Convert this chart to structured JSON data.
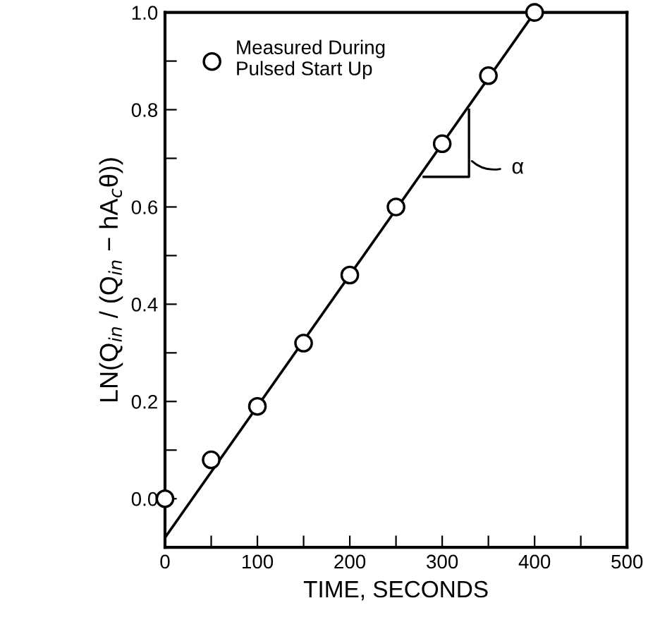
{
  "chart_data": {
    "type": "scatter",
    "xlabel": "TIME, SECONDS",
    "ylabel": "LN(Q$_{in}$ / (Q$_{in}$ − hA$_{c}$θ))",
    "xlim": [
      0,
      500
    ],
    "ylim": [
      -0.1,
      1.0
    ],
    "xticks": [
      0,
      {
        "value": 50,
        "label": null
      },
      100,
      {
        "value": 150,
        "label": null
      },
      200,
      {
        "value": 250,
        "label": null
      },
      300,
      {
        "value": 350,
        "label": null
      },
      400,
      {
        "value": 450,
        "label": null
      },
      500
    ],
    "yticks": [
      {
        "value": 0,
        "label": "0.0"
      },
      {
        "value": 0.1,
        "label": null
      },
      {
        "value": 0.2,
        "label": "0.2"
      },
      {
        "value": 0.3,
        "label": null
      },
      {
        "value": 0.4,
        "label": "0.4"
      },
      {
        "value": 0.5,
        "label": null
      },
      {
        "value": 0.6,
        "label": "0.6"
      },
      {
        "value": 0.7,
        "label": null
      },
      {
        "value": 0.8,
        "label": "0.8"
      },
      {
        "value": 0.9,
        "label": null
      },
      {
        "value": 1.0,
        "label": "1.0"
      }
    ],
    "grid": false,
    "legend": "top left",
    "series": [
      {
        "name": "Measured During\nPulsed Start Up",
        "marker": "circle",
        "color": "#000000",
        "x": [
          0,
          50,
          100,
          150,
          200,
          250,
          300,
          350,
          400
        ],
        "values": [
          0.0,
          0.08,
          0.19,
          0.32,
          0.46,
          0.6,
          0.73,
          0.87,
          1.0
        ]
      },
      {
        "type": "line",
        "color": "#000000",
        "x": [
          0,
          400
        ],
        "values": [
          -0.08,
          1.0
        ]
      }
    ],
    "annotations": [
      "α"
    ]
  }
}
